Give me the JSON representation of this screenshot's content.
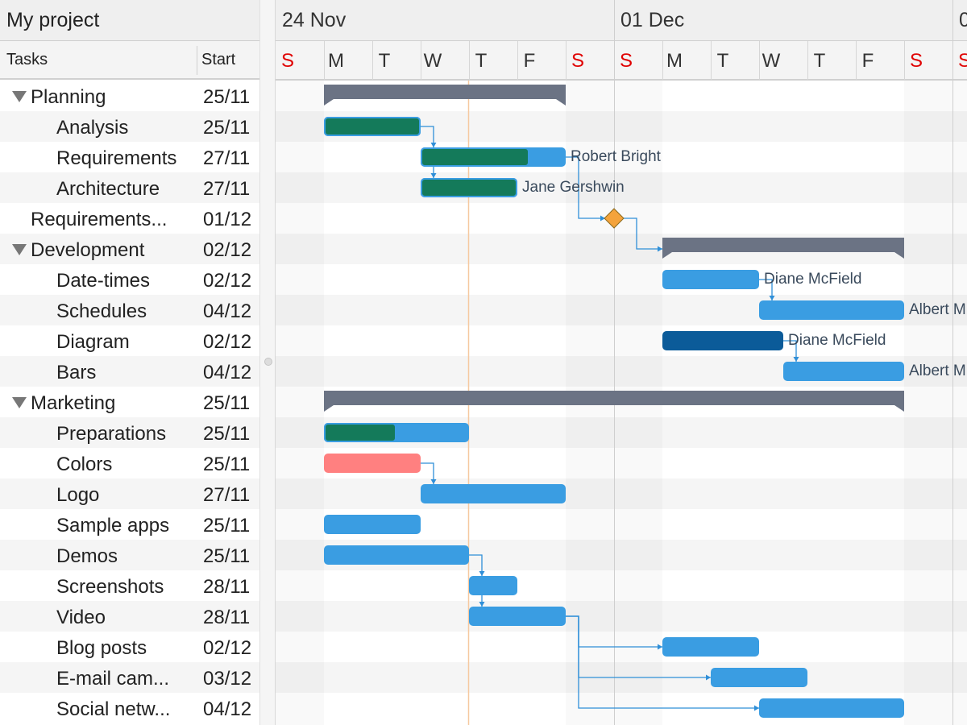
{
  "project_title": "My project",
  "columns": {
    "tasks": "Tasks",
    "start": "Start"
  },
  "weeks": [
    "24 Nov",
    "01 Dec",
    "0"
  ],
  "days": [
    "S",
    "M",
    "T",
    "W",
    "T",
    "F",
    "S",
    "S",
    "M",
    "T",
    "W",
    "T",
    "F",
    "S",
    "S"
  ],
  "colors": {
    "weekend_day": "#e00000",
    "summary_bar": "#6b7384",
    "task_bar": "#3a9de2",
    "completed_bar": "#147a5a",
    "highlight_bar": "#0b5b99",
    "alert_bar": "#ff8080",
    "milestone": "#f4a33c",
    "dependency": "#2f8fd8",
    "current_time": "#f6c9a0"
  },
  "tasks": [
    {
      "name": "Planning",
      "start": "25/11",
      "level": 0,
      "summary": true
    },
    {
      "name": "Analysis",
      "start": "25/11",
      "level": 1
    },
    {
      "name": "Requirements",
      "start": "27/11",
      "level": 1
    },
    {
      "name": "Architecture",
      "start": "27/11",
      "level": 1
    },
    {
      "name": "Requirements...",
      "start": "01/12",
      "level": 0
    },
    {
      "name": "Development",
      "start": "02/12",
      "level": 0,
      "summary": true
    },
    {
      "name": "Date-times",
      "start": "02/12",
      "level": 1
    },
    {
      "name": "Schedules",
      "start": "04/12",
      "level": 1
    },
    {
      "name": "Diagram",
      "start": "02/12",
      "level": 1
    },
    {
      "name": "Bars",
      "start": "04/12",
      "level": 1
    },
    {
      "name": "Marketing",
      "start": "25/11",
      "level": 0,
      "summary": true
    },
    {
      "name": "Preparations",
      "start": "25/11",
      "level": 1
    },
    {
      "name": "Colors",
      "start": "25/11",
      "level": 1
    },
    {
      "name": "Logo",
      "start": "27/11",
      "level": 1
    },
    {
      "name": "Sample apps",
      "start": "25/11",
      "level": 1
    },
    {
      "name": "Demos",
      "start": "25/11",
      "level": 1
    },
    {
      "name": "Screenshots",
      "start": "28/11",
      "level": 1
    },
    {
      "name": "Video",
      "start": "28/11",
      "level": 1
    },
    {
      "name": "Blog posts",
      "start": "02/12",
      "level": 1
    },
    {
      "name": "E-mail cam...",
      "start": "03/12",
      "level": 1
    },
    {
      "name": "Social netw...",
      "start": "04/12",
      "level": 1
    }
  ],
  "bars": [
    {
      "row": 0,
      "start": 1,
      "end": 6,
      "kind": "summary"
    },
    {
      "row": 1,
      "start": 1,
      "end": 3,
      "kind": "task",
      "completion": 1
    },
    {
      "row": 2,
      "start": 3,
      "end": 6,
      "kind": "task",
      "completion": 0.75,
      "resource": "Robert Bright"
    },
    {
      "row": 3,
      "start": 3,
      "end": 5,
      "kind": "task",
      "completion": 1,
      "resource": "Jane Gershwin"
    },
    {
      "row": 4,
      "start": 7,
      "end": 7,
      "kind": "milestone"
    },
    {
      "row": 5,
      "start": 8,
      "end": 13,
      "kind": "summary"
    },
    {
      "row": 6,
      "start": 8,
      "end": 10,
      "kind": "task",
      "resource": "Diane McField"
    },
    {
      "row": 7,
      "start": 10,
      "end": 13,
      "kind": "task",
      "resource": "Albert M"
    },
    {
      "row": 8,
      "start": 8,
      "end": 10.5,
      "kind": "highlight",
      "resource": "Diane McField"
    },
    {
      "row": 9,
      "start": 10.5,
      "end": 13,
      "kind": "task",
      "resource": "Albert M"
    },
    {
      "row": 10,
      "start": 1,
      "end": 13,
      "kind": "summary"
    },
    {
      "row": 11,
      "start": 1,
      "end": 4,
      "kind": "task",
      "completion": 0.5
    },
    {
      "row": 12,
      "start": 1,
      "end": 3,
      "kind": "alert"
    },
    {
      "row": 13,
      "start": 3,
      "end": 6,
      "kind": "task"
    },
    {
      "row": 14,
      "start": 1,
      "end": 3,
      "kind": "task"
    },
    {
      "row": 15,
      "start": 1,
      "end": 4,
      "kind": "task"
    },
    {
      "row": 16,
      "start": 4,
      "end": 5,
      "kind": "task"
    },
    {
      "row": 17,
      "start": 4,
      "end": 6,
      "kind": "task"
    },
    {
      "row": 18,
      "start": 8,
      "end": 10,
      "kind": "task"
    },
    {
      "row": 19,
      "start": 9,
      "end": 11,
      "kind": "task"
    },
    {
      "row": 20,
      "start": 10,
      "end": 13,
      "kind": "task"
    }
  ],
  "dependencies": [
    {
      "from": 1,
      "to": 2,
      "type": "down"
    },
    {
      "from": 2,
      "to": 3,
      "type": "down"
    },
    {
      "from": 2,
      "to": 4,
      "type": "milestone"
    },
    {
      "from": 4,
      "to": 5,
      "type": "summary"
    },
    {
      "from": 6,
      "to": 7,
      "type": "down"
    },
    {
      "from": 8,
      "to": 9,
      "type": "down"
    },
    {
      "from": 12,
      "to": 13,
      "type": "down"
    },
    {
      "from": 15,
      "to": 16,
      "type": "down"
    },
    {
      "from": 16,
      "to": 17,
      "type": "down"
    },
    {
      "from": 17,
      "to": 18,
      "type": "side"
    },
    {
      "from": 17,
      "to": 19,
      "type": "side"
    },
    {
      "from": 17,
      "to": 20,
      "type": "side"
    }
  ],
  "current_time_day": 4
}
